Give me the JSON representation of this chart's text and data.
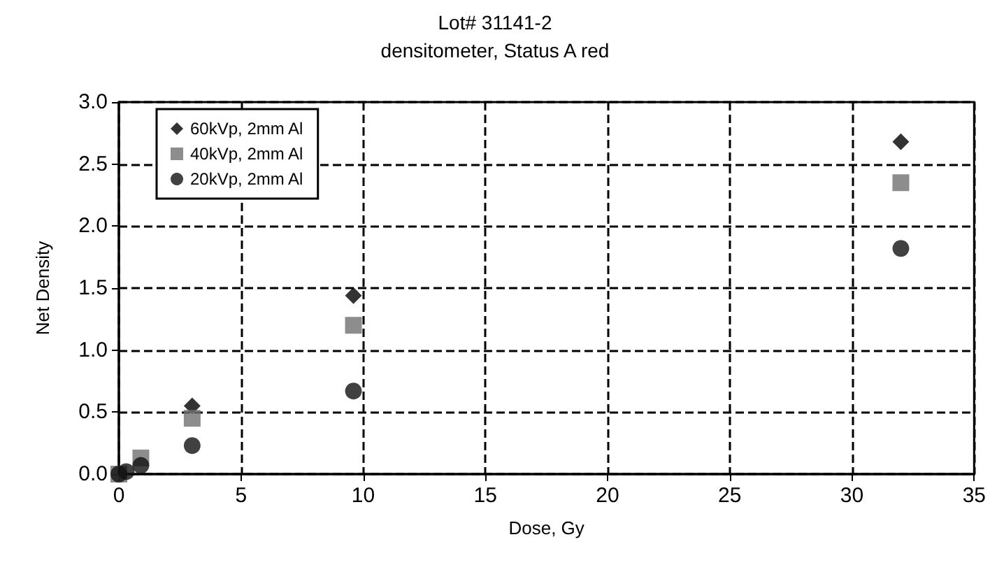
{
  "chart_data": {
    "type": "scatter",
    "title": "Lot# 31141-2",
    "subtitle": "densitometer, Status A red",
    "xlabel": "Dose, Gy",
    "ylabel": "Net Density",
    "x": [
      0,
      0.3,
      0.9,
      3,
      9.6,
      32
    ],
    "series": [
      {
        "name": "60kVp, 2mm Al",
        "color": "#000000",
        "marker": "diamond",
        "values": [
          null,
          null,
          null,
          0.55,
          1.44,
          2.68
        ]
      },
      {
        "name": "40kVp, 2mm Al",
        "color": "#707070",
        "marker": "square",
        "values": [
          0,
          null,
          0.13,
          0.45,
          1.2,
          2.35
        ]
      },
      {
        "name": "20kVp, 2mm Al",
        "color": "#111111",
        "marker": "circle",
        "values": [
          0,
          0.02,
          0.07,
          0.23,
          0.67,
          1.82
        ]
      }
    ],
    "xlim": [
      0,
      35
    ],
    "xticks": [
      0,
      5,
      10,
      15,
      20,
      25,
      30,
      35
    ],
    "ylim": [
      0,
      3
    ],
    "yticks": [
      {
        "value": 0,
        "label": "0.0"
      },
      {
        "value": 0.5,
        "label": "0.5"
      },
      {
        "value": 1,
        "label": "1.0"
      },
      {
        "value": 1.5,
        "label": "1.5"
      },
      {
        "value": 2,
        "label": "2.0"
      },
      {
        "value": 2.5,
        "label": "2.5"
      },
      {
        "value": 3,
        "label": "3.0"
      }
    ],
    "grid": true,
    "legend": "top left",
    "line_style": "dashed"
  }
}
